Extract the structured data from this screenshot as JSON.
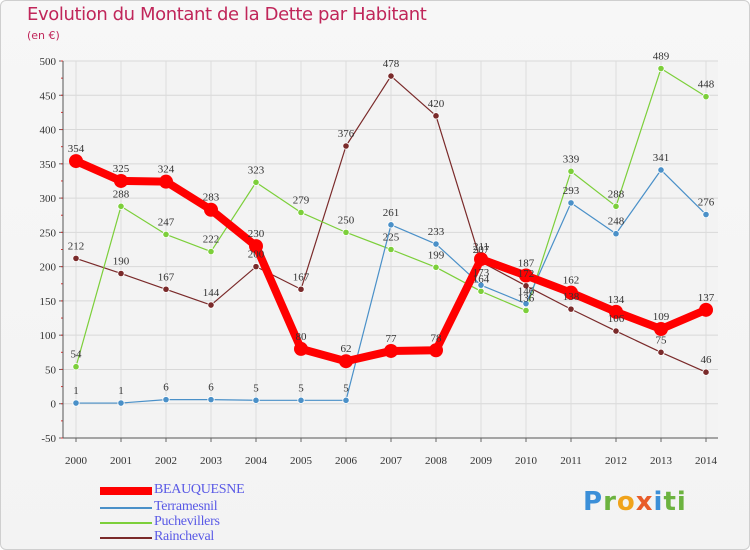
{
  "header": {
    "title": "Evolution du Montant de la Dette par Habitant",
    "unit": "(en €)"
  },
  "logo": {
    "text": "Proxiti",
    "letters": [
      "P",
      "r",
      "o",
      "x",
      "i",
      "ti"
    ]
  },
  "chart_data": {
    "type": "line",
    "title": "Evolution du Montant de la Dette par Habitant",
    "ylabel": "(en €)",
    "xlabel": "",
    "x": [
      "2000",
      "2001",
      "2002",
      "2003",
      "2004",
      "2005",
      "2006",
      "2007",
      "2008",
      "2009",
      "2010",
      "2011",
      "2012",
      "2013",
      "2014"
    ],
    "ylim": [
      -50,
      500
    ],
    "yticks": [
      -50,
      0,
      50,
      100,
      150,
      200,
      250,
      300,
      350,
      400,
      450,
      500
    ],
    "grid": true,
    "legend_position": "bottom-left",
    "series": [
      {
        "name": "BEAUQUESNE",
        "color": "#ff0000",
        "values": [
          354,
          325,
          324,
          283,
          230,
          80,
          62,
          77,
          78,
          211,
          187,
          162,
          134,
          109,
          137
        ],
        "labels": [
          "354",
          "325",
          "324",
          "283",
          "230",
          "80",
          "62",
          "77",
          "78",
          "211",
          "187",
          "162",
          "134",
          "109",
          "137"
        ],
        "emphasis": true
      },
      {
        "name": "Terramesnil",
        "color": "#4a90c8",
        "values": [
          1,
          1,
          6,
          6,
          5,
          5,
          5,
          261,
          233,
          173,
          146,
          293,
          248,
          341,
          276
        ],
        "labels": [
          "1",
          "1",
          "6",
          "6",
          "5",
          "5",
          "5",
          "261",
          "233",
          "173",
          "146",
          "293",
          "248",
          "341",
          "276"
        ]
      },
      {
        "name": "Puchevillers",
        "color": "#7ccf3a",
        "values": [
          54,
          288,
          247,
          222,
          323,
          279,
          250,
          225,
          199,
          164,
          136,
          339,
          288,
          489,
          448
        ],
        "labels": [
          "54",
          "288",
          "247",
          "222",
          "323",
          "279",
          "250",
          "225",
          "199",
          "164",
          "136",
          "339",
          "288",
          "489",
          "448"
        ]
      },
      {
        "name": "Raincheval",
        "color": "#7a2a2a",
        "values": [
          212,
          190,
          167,
          144,
          200,
          167,
          376,
          478,
          420,
          207,
          172,
          138,
          106,
          75,
          46
        ],
        "labels": [
          "212",
          "190",
          "167",
          "144",
          "200",
          "167",
          "376",
          "478",
          "420",
          "207",
          "172",
          "138",
          "106",
          "75",
          "46"
        ]
      }
    ]
  }
}
